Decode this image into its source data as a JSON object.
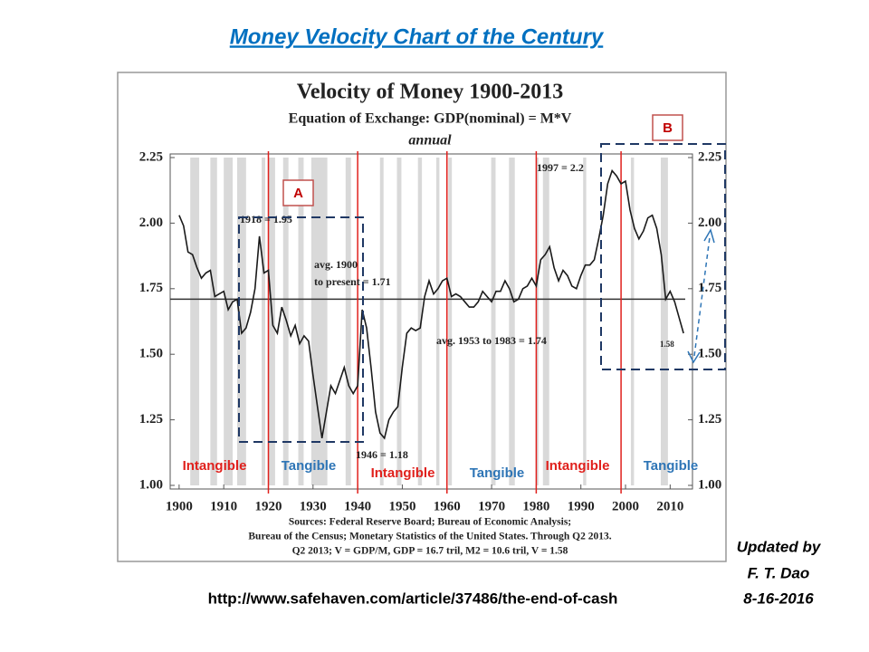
{
  "slide": {
    "title": "Money Velocity  Chart of the Century",
    "url": "http://www.safehaven.com/article/37486/the-end-of-cash",
    "updated_by": [
      "Updated by",
      "F. T. Dao",
      "8-16-2016"
    ]
  },
  "chart_data": {
    "type": "line",
    "title": "Velocity of Money 1900-2013",
    "subtitle": "Equation of Exchange: GDP(nominal) = M*V",
    "note": "annual",
    "color": "#1a1a1a",
    "x": [
      1900,
      1901,
      1902,
      1903,
      1904,
      1905,
      1906,
      1907,
      1908,
      1909,
      1910,
      1911,
      1912,
      1913,
      1914,
      1915,
      1916,
      1917,
      1918,
      1919,
      1920,
      1921,
      1922,
      1923,
      1924,
      1925,
      1926,
      1927,
      1928,
      1929,
      1930,
      1931,
      1932,
      1933,
      1934,
      1935,
      1936,
      1937,
      1938,
      1939,
      1940,
      1941,
      1942,
      1943,
      1944,
      1945,
      1946,
      1947,
      1948,
      1949,
      1950,
      1951,
      1952,
      1953,
      1954,
      1955,
      1956,
      1957,
      1958,
      1959,
      1960,
      1961,
      1962,
      1963,
      1964,
      1965,
      1966,
      1967,
      1968,
      1969,
      1970,
      1971,
      1972,
      1973,
      1974,
      1975,
      1976,
      1977,
      1978,
      1979,
      1980,
      1981,
      1982,
      1983,
      1984,
      1985,
      1986,
      1987,
      1988,
      1989,
      1990,
      1991,
      1992,
      1993,
      1994,
      1995,
      1996,
      1997,
      1998,
      1999,
      2000,
      2001,
      2002,
      2003,
      2004,
      2005,
      2006,
      2007,
      2008,
      2009,
      2010,
      2011,
      2012,
      2013
    ],
    "values": [
      2.03,
      1.99,
      1.89,
      1.88,
      1.83,
      1.79,
      1.81,
      1.82,
      1.72,
      1.73,
      1.74,
      1.67,
      1.7,
      1.71,
      1.58,
      1.6,
      1.66,
      1.75,
      1.95,
      1.81,
      1.82,
      1.61,
      1.58,
      1.68,
      1.63,
      1.57,
      1.61,
      1.54,
      1.57,
      1.55,
      1.42,
      1.3,
      1.18,
      1.28,
      1.38,
      1.35,
      1.4,
      1.45,
      1.38,
      1.35,
      1.38,
      1.67,
      1.6,
      1.45,
      1.28,
      1.2,
      1.18,
      1.25,
      1.28,
      1.3,
      1.45,
      1.58,
      1.6,
      1.59,
      1.6,
      1.72,
      1.78,
      1.73,
      1.75,
      1.78,
      1.79,
      1.72,
      1.73,
      1.72,
      1.7,
      1.68,
      1.68,
      1.7,
      1.74,
      1.72,
      1.7,
      1.74,
      1.74,
      1.78,
      1.75,
      1.7,
      1.71,
      1.75,
      1.76,
      1.79,
      1.76,
      1.86,
      1.88,
      1.91,
      1.83,
      1.78,
      1.82,
      1.8,
      1.76,
      1.75,
      1.8,
      1.84,
      1.84,
      1.86,
      1.94,
      2.03,
      2.15,
      2.2,
      2.18,
      2.15,
      2.16,
      2.05,
      1.98,
      1.94,
      1.97,
      2.02,
      2.03,
      1.98,
      1.88,
      1.71,
      1.74,
      1.7,
      1.64,
      1.58
    ],
    "xlim": [
      1898,
      2015
    ],
    "xticks": [
      1900,
      1910,
      1920,
      1930,
      1940,
      1950,
      1960,
      1970,
      1980,
      1990,
      2000,
      2010
    ],
    "ylim": [
      1,
      2.25
    ],
    "yticks": [
      {
        "value": 1,
        "label": "1.00"
      },
      1.25,
      {
        "value": 1.5,
        "label": "1.50"
      },
      1.75,
      {
        "value": 2,
        "label": "2.00"
      },
      2.25
    ],
    "y2lim": [
      1,
      2.25
    ],
    "y2ticks": [
      {
        "value": 1,
        "label": "1.00"
      },
      1.25,
      {
        "value": 1.5,
        "label": "1.50"
      },
      1.75,
      {
        "value": 2,
        "label": "2.00"
      },
      2.25
    ],
    "average": 1.71,
    "shaded_periods": [
      [
        1902.5,
        1904.5
      ],
      [
        1907,
        1908.5
      ],
      [
        1910,
        1912
      ],
      [
        1913,
        1915
      ],
      [
        1918.5,
        1919.3
      ],
      [
        1920,
        1921.5
      ],
      [
        1923.3,
        1924.5
      ],
      [
        1926.7,
        1927.9
      ],
      [
        1929.6,
        1933.2
      ],
      [
        1937.3,
        1938.5
      ],
      [
        1945,
        1945.8
      ],
      [
        1948.8,
        1949.8
      ],
      [
        1953.5,
        1954.4
      ],
      [
        1957.6,
        1958.3
      ],
      [
        1960.3,
        1961.1
      ],
      [
        1969.9,
        1970.9
      ],
      [
        1973.9,
        1975.2
      ],
      [
        1980,
        1980.5
      ],
      [
        1981.5,
        1982.9
      ],
      [
        1990.5,
        1991.2
      ],
      [
        2001.2,
        2001.9
      ],
      [
        2007.9,
        2009.5
      ]
    ],
    "regime_lines": [
      1920,
      1940,
      1960,
      1980,
      1999
    ],
    "regime_labels": [
      {
        "text": "Intangible",
        "color": "#e0201c"
      },
      {
        "text": "Tangible",
        "color": "#2e75b6"
      },
      {
        "text": "Intangible",
        "color": "#e0201c"
      },
      {
        "text": "Tangible",
        "color": "#2e75b6"
      },
      {
        "text": "Intangible",
        "color": "#e0201c"
      },
      {
        "text": "Tangible",
        "color": "#2e75b6"
      }
    ],
    "annotations": [
      "1918 = 1.95",
      "avg. 1900",
      "to present = 1.71",
      "avg. 1953 to 1983 = 1.74",
      "1946 = 1.18",
      "1997 = 2.2",
      "1.58"
    ],
    "boxes": [
      "A",
      "B"
    ],
    "sources": [
      "Sources: Federal Reserve Board; Bureau of Economic Analysis;",
      "Bureau of the Census; Monetary Statistics of the United States. Through Q2 2013.",
      "Q2 2013; V = GDP/M, GDP = 16.7 tril, M2 = 10.6 tril, V = 1.58"
    ]
  }
}
